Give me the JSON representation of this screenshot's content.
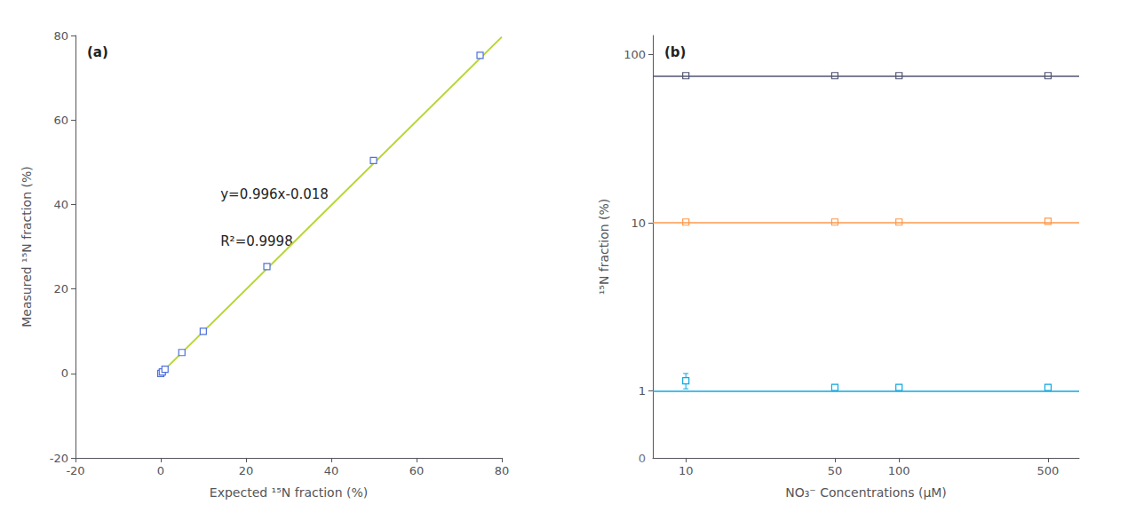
{
  "chart_data": [
    {
      "type": "scatter",
      "title": "(a)",
      "xlabel": "Expected ¹⁵N fraction (%)",
      "ylabel": "Measured ¹⁵N fraction (%)",
      "xlim": [
        -20,
        80
      ],
      "ylim": [
        -20,
        80
      ],
      "xticks": [
        -20,
        0,
        20,
        40,
        60,
        80
      ],
      "yticks": [
        -20,
        0,
        20,
        40,
        60,
        80
      ],
      "grid": false,
      "annotations": [
        "y=0.996x-0.018",
        "R²=0.9998"
      ],
      "series": [
        {
          "type": "scatter",
          "marker": "square",
          "x": [
            0.0,
            0.37,
            0.99,
            4.95,
            9.97,
            24.9,
            49.9,
            74.9
          ],
          "values": [
            0.0,
            0.37,
            0.99,
            4.95,
            9.97,
            25.3,
            50.4,
            75.3
          ],
          "x_err": [
            0.02,
            0.02,
            0.02,
            0.05,
            0.05,
            0.1,
            0.15,
            0.2
          ],
          "y_err": [
            0.03,
            0.03,
            0.03,
            0.05,
            0.07,
            0.15,
            0.18,
            0.25
          ]
        },
        {
          "type": "line",
          "line_style": "solid",
          "x": [
            0,
            80
          ],
          "values": [
            -0.018,
            79.662
          ]
        }
      ]
    },
    {
      "type": "scatter",
      "title": "(b)",
      "log": true,
      "xlabel": "NO₃⁻ Concentrations (μM)",
      "ylabel": "¹⁵N fraction (%)",
      "x": [
        10,
        50,
        100,
        500
      ],
      "xlim": [
        7,
        700
      ],
      "ylim": [
        0.4,
        130
      ],
      "xticks": [
        10,
        50,
        100,
        500
      ],
      "yticks": [
        1,
        10,
        100
      ],
      "grid": false,
      "annotations": [
        "0"
      ],
      "series": [
        {
          "type": "scatter",
          "marker": "square",
          "values": [
            75.0,
            75.0,
            75.0,
            75.0
          ],
          "y_err": [
            0.3,
            0.3,
            0.3,
            0.3
          ],
          "nominal": 75.0
        },
        {
          "type": "scatter",
          "marker": "square",
          "values": [
            10.1,
            10.1,
            10.1,
            10.2
          ],
          "y_err": [
            0.05,
            0.05,
            0.05,
            0.07
          ],
          "nominal": 10.0
        },
        {
          "type": "scatter",
          "marker": "square",
          "values": [
            1.15,
            1.05,
            1.05,
            1.05
          ],
          "y_err": [
            0.12,
            0.04,
            0.04,
            0.04
          ],
          "nominal": 1.0
        }
      ]
    }
  ]
}
